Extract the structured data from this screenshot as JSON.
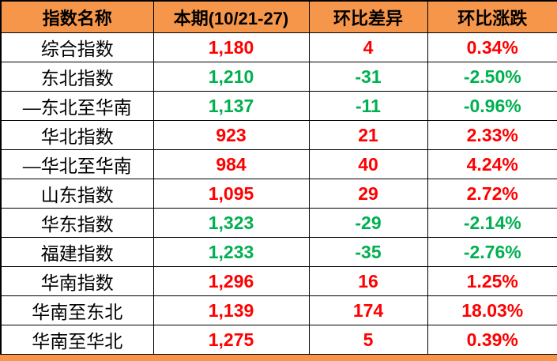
{
  "colors": {
    "header_bg": "#F6964A",
    "up": "#FF0000",
    "down": "#00B050",
    "border": "#000000",
    "header_text": "#000000",
    "name_text": "#000000",
    "footer_bg": "#F6964A"
  },
  "table": {
    "columns": [
      {
        "label": "指数名称"
      },
      {
        "label": "本期(10/21-27)"
      },
      {
        "label": "环比差异"
      },
      {
        "label": "环比涨跌"
      }
    ],
    "rows": [
      {
        "name": "综合指数",
        "current": "1,180",
        "diff": "4",
        "change": "0.34%",
        "dir": "up"
      },
      {
        "name": "东北指数",
        "current": "1,210",
        "diff": "-31",
        "change": "-2.50%",
        "dir": "down"
      },
      {
        "name": "—东北至华南",
        "current": "1,137",
        "diff": "-11",
        "change": "-0.96%",
        "dir": "down"
      },
      {
        "name": "华北指数",
        "current": "923",
        "diff": "21",
        "change": "2.33%",
        "dir": "up"
      },
      {
        "name": "—华北至华南",
        "current": "984",
        "diff": "40",
        "change": "4.24%",
        "dir": "up"
      },
      {
        "name": "山东指数",
        "current": "1,095",
        "diff": "29",
        "change": "2.72%",
        "dir": "up"
      },
      {
        "name": "华东指数",
        "current": "1,323",
        "diff": "-29",
        "change": "-2.14%",
        "dir": "down"
      },
      {
        "name": "福建指数",
        "current": "1,233",
        "diff": "-35",
        "change": "-2.76%",
        "dir": "down"
      },
      {
        "name": "华南指数",
        "current": "1,296",
        "diff": "16",
        "change": "1.25%",
        "dir": "up"
      },
      {
        "name": "华南至东北",
        "current": "1,139",
        "diff": "174",
        "change": "18.03%",
        "dir": "up"
      },
      {
        "name": "华南至华北",
        "current": "1,275",
        "diff": "5",
        "change": "0.39%",
        "dir": "up"
      }
    ]
  }
}
